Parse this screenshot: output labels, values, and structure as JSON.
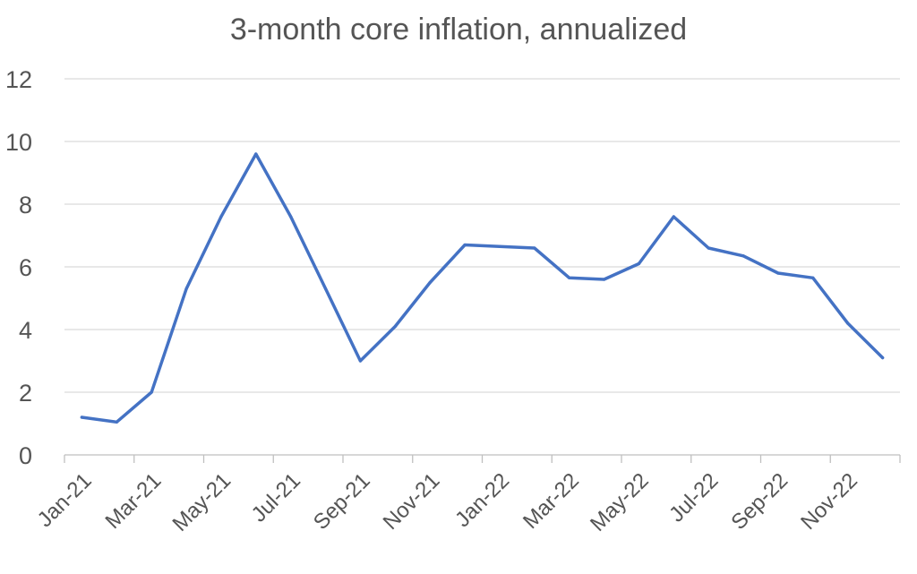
{
  "chart_data": {
    "type": "line",
    "title": "3-month core inflation, annualized",
    "xlabel": "",
    "ylabel": "",
    "ylim": [
      0,
      12
    ],
    "yticks": [
      0,
      2,
      4,
      6,
      8,
      10,
      12
    ],
    "grid": true,
    "legend": "none",
    "categories": [
      "Jan-21",
      "Feb-21",
      "Mar-21",
      "Apr-21",
      "May-21",
      "Jun-21",
      "Jul-21",
      "Aug-21",
      "Sep-21",
      "Oct-21",
      "Nov-21",
      "Dec-21",
      "Jan-22",
      "Feb-22",
      "Mar-22",
      "Apr-22",
      "May-22",
      "Jun-22",
      "Jul-22",
      "Aug-22",
      "Sep-22",
      "Oct-22",
      "Nov-22",
      "Dec-22"
    ],
    "tick_labels": [
      "Jan-21",
      "Mar-21",
      "May-21",
      "Jul-21",
      "Sep-21",
      "Nov-21",
      "Jan-22",
      "Mar-22",
      "May-22",
      "Jul-22",
      "Sep-22",
      "Nov-22"
    ],
    "series": [
      {
        "color": "#4472c4",
        "values": [
          1.2,
          1.05,
          2.0,
          5.3,
          7.6,
          9.6,
          7.6,
          5.3,
          3.0,
          4.1,
          5.5,
          6.7,
          6.65,
          6.6,
          5.65,
          5.6,
          6.1,
          7.6,
          6.6,
          6.35,
          5.8,
          5.65,
          4.2,
          3.1
        ]
      }
    ]
  }
}
